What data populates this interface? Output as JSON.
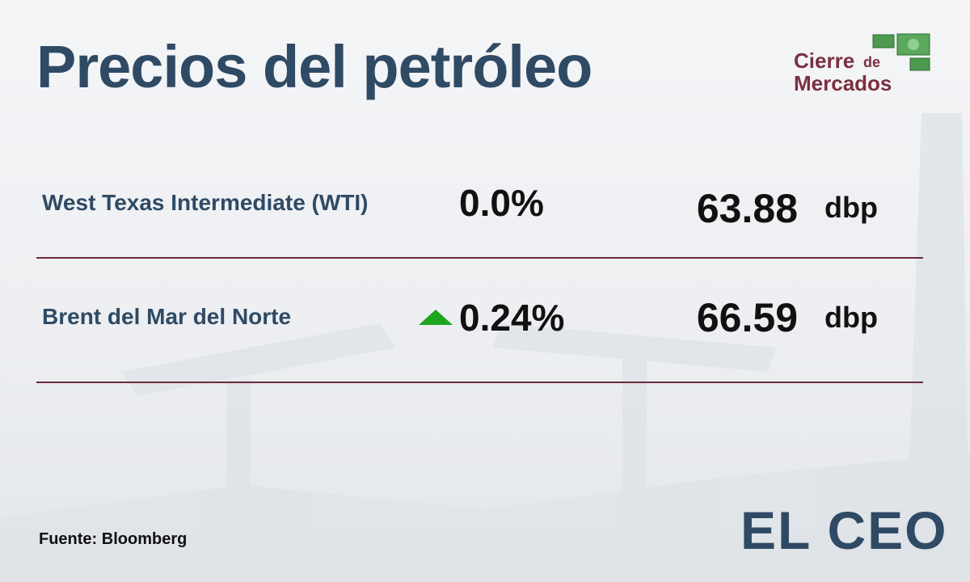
{
  "header": {
    "title": "Precios del petróleo"
  },
  "logo": {
    "line1": "Cierre",
    "line2": "de",
    "line3": "Mercados"
  },
  "table": {
    "rows": [
      {
        "name": "West Texas Intermediate (WTI)",
        "change": "0.0%",
        "price": "63.88",
        "unit": "dbp"
      },
      {
        "name": "Brent del Mar del Norte",
        "change": "0.24%",
        "price": "66.59",
        "unit": "dbp"
      }
    ]
  },
  "footer": {
    "source": "Fuente: Bloomberg",
    "brand": "EL CEO"
  }
}
